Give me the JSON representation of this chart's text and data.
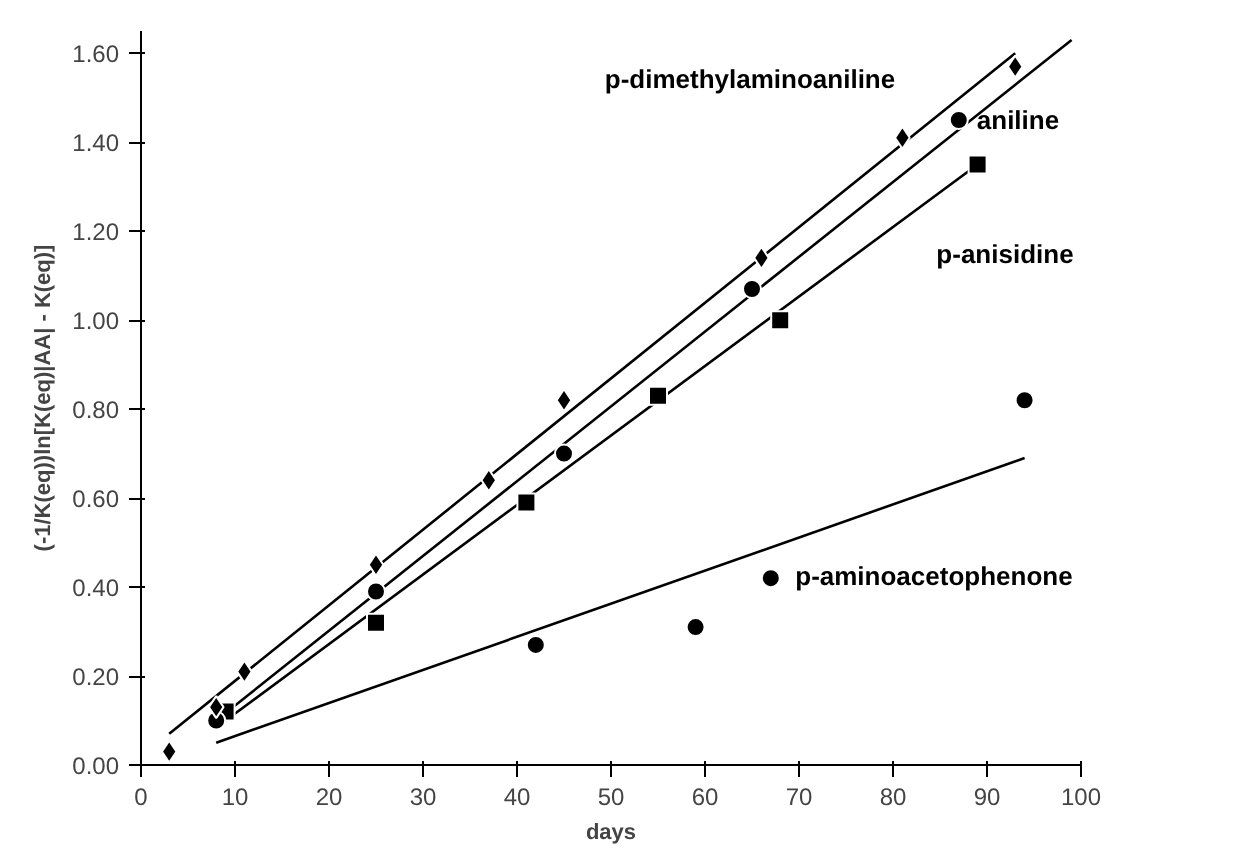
{
  "chart_data": {
    "type": "scatter",
    "xlabel": "days",
    "ylabel": "(-1/K(eq))ln[K(eq)|AA| - K(eq)]",
    "xlim": [
      0,
      100
    ],
    "xticks": [
      0,
      10,
      20,
      30,
      40,
      50,
      60,
      70,
      80,
      90,
      100
    ],
    "ylim": [
      0,
      1.65
    ],
    "yticks": [
      {
        "value": 0,
        "label": "0.00"
      },
      {
        "value": 0.2,
        "label": "0.20"
      },
      {
        "value": 0.4,
        "label": "0.40"
      },
      {
        "value": 0.6,
        "label": "0.60"
      },
      {
        "value": 0.8,
        "label": "0.80"
      },
      {
        "value": 1.0,
        "label": "1.00"
      },
      {
        "value": 1.2,
        "label": "1.20"
      },
      {
        "value": 1.4,
        "label": "1.40"
      },
      {
        "value": 1.6,
        "label": "1.60"
      }
    ],
    "grid": false,
    "series": [
      {
        "name": "p-dimethylaminoaniline",
        "marker": "diamond",
        "color": "#000000",
        "x": [
          3,
          8,
          11,
          25,
          37,
          45,
          66,
          81,
          93
        ],
        "values": [
          0.03,
          0.13,
          0.21,
          0.45,
          0.64,
          0.82,
          1.14,
          1.41,
          1.57
        ]
      },
      {
        "name": "aniline",
        "marker": "circle",
        "color": "#000000",
        "x": [
          8,
          25,
          45,
          65,
          87
        ],
        "values": [
          0.1,
          0.39,
          0.7,
          1.07,
          1.45
        ]
      },
      {
        "name": "p-anisidine",
        "marker": "square",
        "color": "#000000",
        "x": [
          9,
          25,
          41,
          55,
          68,
          89
        ],
        "values": [
          0.12,
          0.32,
          0.59,
          0.83,
          1.0,
          1.35
        ]
      },
      {
        "name": "p-aminoacetophenone",
        "marker": "circle",
        "color": "#000000",
        "x": [
          42,
          59,
          67,
          94
        ],
        "values": [
          0.27,
          0.31,
          0.42,
          0.82
        ]
      },
      {
        "type": "line",
        "color": "#000000",
        "x": [
          3,
          93
        ],
        "values": [
          0.07,
          1.6
        ]
      },
      {
        "type": "line",
        "color": "#000000",
        "x": [
          8,
          99
        ],
        "values": [
          0.1,
          1.63
        ]
      },
      {
        "type": "line",
        "color": "#000000",
        "x": [
          9,
          89
        ],
        "values": [
          0.1,
          1.35
        ]
      },
      {
        "type": "line",
        "color": "#000000",
        "x": [
          8,
          94
        ],
        "values": [
          0.05,
          0.69
        ]
      }
    ]
  }
}
